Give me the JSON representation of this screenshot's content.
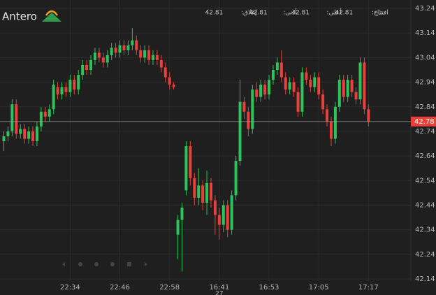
{
  "chart_data": {
    "type": "candlestick",
    "title": "Antero",
    "ohlc_info": [
      {
        "label": "افتتاح:",
        "value": 42.81
      },
      {
        "label": "أعلى:",
        "value": 42.81
      },
      {
        "label": "أدنى:",
        "value": 42.81
      },
      {
        "label": "إغلاق:",
        "value": 42.81
      }
    ],
    "categories": [
      null,
      null,
      null,
      null,
      null,
      null,
      null,
      null,
      null,
      null,
      null,
      null,
      null,
      null,
      null,
      null,
      "22:34",
      null,
      null,
      null,
      null,
      null,
      null,
      null,
      null,
      null,
      null,
      null,
      "22:46",
      null,
      null,
      null,
      null,
      null,
      null,
      null,
      null,
      null,
      null,
      null,
      "22:58",
      null,
      null,
      null,
      null,
      null,
      null,
      null,
      null,
      null,
      null,
      null,
      "16:41",
      null,
      null,
      null,
      null,
      null,
      null,
      null,
      null,
      null,
      null,
      null,
      "16:53",
      null,
      null,
      null,
      null,
      null,
      null,
      null,
      null,
      null,
      null,
      null,
      "17:05",
      null,
      null,
      null,
      null,
      null,
      null,
      null,
      null,
      null,
      null,
      null,
      "17:17"
    ],
    "date_label": "27",
    "open": [
      42.7,
      42.72,
      42.74,
      42.85,
      42.73,
      42.75,
      42.71,
      42.74,
      42.7,
      42.76,
      42.82,
      42.8,
      42.83,
      42.92,
      42.89,
      42.92,
      42.9,
      42.95,
      42.91,
      42.97,
      43.01,
      42.99,
      43.03,
      43.06,
      43.04,
      43.02,
      43.05,
      43.08,
      43.06,
      43.09,
      43.07,
      43.09,
      43.11,
      43.07,
      43.04,
      43.07,
      43.03,
      43.05,
      43.03,
      43.0,
      42.96,
      42.93,
      42.32,
      42.38,
      42.5,
      42.68,
      42.55,
      42.47,
      42.52,
      42.45,
      42.53,
      42.46,
      42.4,
      42.36,
      42.44,
      42.34,
      42.48,
      42.62,
      42.86,
      42.82,
      42.75,
      42.91,
      42.88,
      42.93,
      42.89,
      42.95,
      42.99,
      43.02,
      42.96,
      42.91,
      42.94,
      42.9,
      42.82,
      42.98,
      42.95,
      42.92,
      42.96,
      42.89,
      42.83,
      42.78,
      42.71,
      42.84,
      42.95,
      42.88,
      42.95,
      42.9,
      42.87,
      43.02,
      42.83
    ],
    "high": [
      42.74,
      42.76,
      42.87,
      42.87,
      42.77,
      42.77,
      42.76,
      42.76,
      42.78,
      42.84,
      42.84,
      42.85,
      42.95,
      42.94,
      42.94,
      42.94,
      42.97,
      42.97,
      42.99,
      43.03,
      43.03,
      43.05,
      43.08,
      43.08,
      43.06,
      43.07,
      43.1,
      43.1,
      43.11,
      43.11,
      43.11,
      43.16,
      43.13,
      43.09,
      43.09,
      43.09,
      43.07,
      43.07,
      43.05,
      43.02,
      42.98,
      42.94,
      42.4,
      42.45,
      42.7,
      42.7,
      42.57,
      42.59,
      42.54,
      42.58,
      42.55,
      42.48,
      42.43,
      42.46,
      42.46,
      42.5,
      42.64,
      42.95,
      42.88,
      42.84,
      42.93,
      42.94,
      42.95,
      42.95,
      42.97,
      43.01,
      43.04,
      43.07,
      42.98,
      42.96,
      42.96,
      42.92,
      43.0,
      43.0,
      42.97,
      42.98,
      42.98,
      42.91,
      42.85,
      42.8,
      42.86,
      42.97,
      42.97,
      42.97,
      42.97,
      42.92,
      43.04,
      43.04,
      42.85
    ],
    "low": [
      42.66,
      42.7,
      42.72,
      42.71,
      42.71,
      42.69,
      42.69,
      42.68,
      42.68,
      42.74,
      42.78,
      42.78,
      42.81,
      42.87,
      42.87,
      42.88,
      42.88,
      42.89,
      42.89,
      42.95,
      42.97,
      42.97,
      43.01,
      43.02,
      43.0,
      43.0,
      43.03,
      43.04,
      43.04,
      43.05,
      43.05,
      43.07,
      43.05,
      43.02,
      43.02,
      43.01,
      43.01,
      43.01,
      42.98,
      42.94,
      42.91,
      42.91,
      42.22,
      42.17,
      42.48,
      42.52,
      42.44,
      42.44,
      42.42,
      42.4,
      42.43,
      42.32,
      42.3,
      42.33,
      42.31,
      42.32,
      42.46,
      42.6,
      42.79,
      42.72,
      42.73,
      42.86,
      42.86,
      42.87,
      42.87,
      42.93,
      42.97,
      42.94,
      42.89,
      42.89,
      42.88,
      42.8,
      42.8,
      42.93,
      42.9,
      42.9,
      42.87,
      42.81,
      42.76,
      42.68,
      42.69,
      42.82,
      42.86,
      42.86,
      42.88,
      42.85,
      42.85,
      42.81,
      42.76
    ],
    "close": [
      42.72,
      42.74,
      42.85,
      42.73,
      42.75,
      42.71,
      42.74,
      42.7,
      42.76,
      42.82,
      42.8,
      42.83,
      42.93,
      42.89,
      42.92,
      42.9,
      42.95,
      42.91,
      42.97,
      43.01,
      42.99,
      43.03,
      43.06,
      43.04,
      43.02,
      43.05,
      43.08,
      43.06,
      43.09,
      43.07,
      43.09,
      43.11,
      43.07,
      43.04,
      43.07,
      43.03,
      43.05,
      43.03,
      43.0,
      42.96,
      42.93,
      42.92,
      42.38,
      42.43,
      42.68,
      42.55,
      42.47,
      42.52,
      42.45,
      42.53,
      42.46,
      42.4,
      42.36,
      42.44,
      42.34,
      42.48,
      42.62,
      42.86,
      42.82,
      42.75,
      42.91,
      42.88,
      42.93,
      42.89,
      42.95,
      42.99,
      43.02,
      42.96,
      42.91,
      42.94,
      42.9,
      42.82,
      42.98,
      42.95,
      42.92,
      42.96,
      42.89,
      42.83,
      42.78,
      42.71,
      42.84,
      42.95,
      42.88,
      42.95,
      42.9,
      42.87,
      43.02,
      42.83,
      42.78
    ],
    "up_color": "#2ec25a",
    "down_color": "#e8403a",
    "last_price": 42.78,
    "last_price_color": "#e8403a",
    "ylim": [
      42.13,
      43.27
    ],
    "yticks": [
      43.24,
      43.14,
      43.04,
      42.94,
      42.84,
      42.74,
      42.64,
      42.54,
      42.44,
      42.34,
      42.24,
      42.14
    ],
    "grid": true
  }
}
